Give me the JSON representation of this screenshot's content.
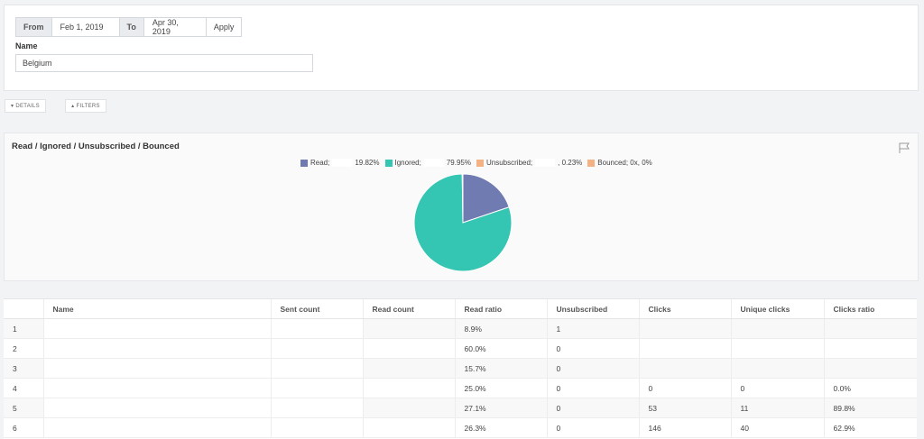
{
  "date_range": {
    "from_label": "From",
    "from_value": "Feb 1, 2019",
    "to_label": "To",
    "to_value": "Apr 30, 2019",
    "apply_label": "Apply"
  },
  "name_field": {
    "label": "Name",
    "value": "Belgium"
  },
  "toolbar": {
    "details_label": "DETAILS",
    "filters_label": "FILTERS"
  },
  "chart": {
    "title": "Read / Ignored / Unsubscribed / Bounced",
    "legend": [
      {
        "label": "Read;",
        "value": "19.82%",
        "color": "#6f7bb1"
      },
      {
        "label": "Ignored;",
        "value": "79.95%",
        "color": "#35c5b3"
      },
      {
        "label": "Unsubscribed;",
        "value": ", 0.23%",
        "color": "#f4b183"
      },
      {
        "label": "Bounced; 0x, 0%",
        "value": "",
        "color": "#f4b183"
      }
    ]
  },
  "chart_data": {
    "type": "pie",
    "title": "Read / Ignored / Unsubscribed / Bounced",
    "slices": [
      {
        "name": "Read",
        "value": 19.82,
        "color": "#6f7bb1"
      },
      {
        "name": "Ignored",
        "value": 79.95,
        "color": "#35c5b3"
      },
      {
        "name": "Unsubscribed",
        "value": 0.23,
        "color": "#f4b183"
      },
      {
        "name": "Bounced",
        "value": 0,
        "color": "#f4b183"
      }
    ],
    "legend_position": "top"
  },
  "table": {
    "columns": [
      "",
      "Name",
      "Sent count",
      "Read count",
      "Read ratio",
      "Unsubscribed",
      "Clicks",
      "Unique clicks",
      "Clicks ratio"
    ],
    "rows": [
      [
        "1",
        "",
        "",
        "",
        "8.9%",
        "1",
        "",
        "",
        ""
      ],
      [
        "2",
        "",
        "",
        "",
        "60.0%",
        "0",
        "",
        "",
        ""
      ],
      [
        "3",
        "",
        "",
        "",
        "15.7%",
        "0",
        "",
        "",
        ""
      ],
      [
        "4",
        "",
        "",
        "",
        "25.0%",
        "0",
        "0",
        "0",
        "0.0%"
      ],
      [
        "5",
        "",
        "",
        "",
        "27.1%",
        "0",
        "53",
        "11",
        "89.8%"
      ],
      [
        "6",
        "",
        "",
        "",
        "26.3%",
        "0",
        "146",
        "40",
        "62.9%"
      ]
    ]
  }
}
